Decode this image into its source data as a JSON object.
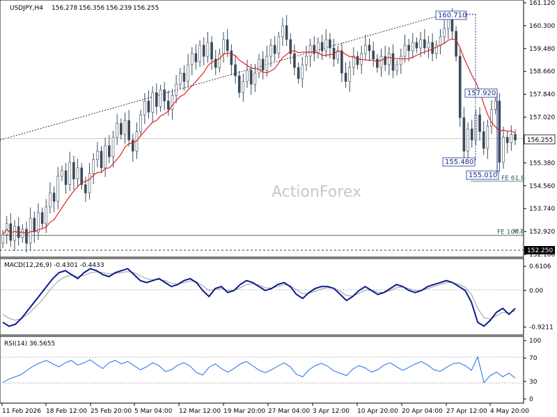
{
  "chart_data": [
    {
      "type": "candlestick",
      "title": "USDJPY,H4",
      "ohlc_header": {
        "open": "156.278",
        "high": "156.356",
        "low": "156.239",
        "close": "156.255"
      },
      "y_ticks": [
        "161.120",
        "160.300",
        "159.480",
        "158.660",
        "157.840",
        "157.020",
        "156.200",
        "155.380",
        "154.560",
        "153.740",
        "152.920",
        "152.100"
      ],
      "ylim": [
        152.1,
        161.12
      ],
      "current_price": "156.255",
      "current_price_value": 156.255,
      "low_marker_label": "152.250",
      "low_marker_value": 152.25,
      "moving_average_color": "#e0211f",
      "candle_color": "#3a4a5a",
      "grid": false,
      "annotations": {
        "peak": {
          "label": "160.710",
          "value": 160.71
        },
        "rebound_high": {
          "label": "157.920",
          "value": 157.92
        },
        "first_low": {
          "label": "155.480",
          "value": 155.48
        },
        "second_low": {
          "label": "155.010",
          "value": 155.01
        },
        "fe_618": {
          "label": "FE 61.8",
          "value": 154.72
        },
        "fe_100": {
          "label": "FE 100.0",
          "value": 152.78
        },
        "fe_100_fragment": "38.2"
      },
      "closes": [
        152.8,
        153.2,
        152.6,
        153.1,
        152.7,
        153.0,
        152.5,
        153.4,
        152.9,
        153.6,
        153.2,
        153.8,
        154.3,
        154.0,
        154.9,
        155.1,
        154.6,
        155.4,
        154.8,
        155.2,
        154.6,
        154.3,
        155.0,
        155.5,
        155.8,
        155.2,
        156.0,
        155.6,
        156.3,
        156.8,
        156.4,
        156.9,
        156.2,
        155.8,
        156.5,
        157.1,
        157.6,
        157.2,
        157.9,
        157.4,
        158.0,
        157.6,
        157.3,
        157.8,
        158.2,
        158.6,
        158.3,
        158.9,
        159.3,
        159.0,
        159.6,
        159.2,
        159.7,
        159.1,
        158.8,
        159.3,
        159.8,
        159.4,
        158.9,
        158.5,
        157.9,
        158.3,
        158.7,
        158.2,
        158.6,
        159.1,
        158.7,
        159.2,
        159.6,
        159.3,
        159.9,
        160.3,
        159.8,
        159.3,
        158.8,
        158.4,
        158.9,
        159.2,
        159.6,
        159.3,
        159.7,
        159.4,
        159.8,
        159.5,
        159.1,
        159.4,
        158.6,
        158.3,
        158.8,
        159.2,
        158.9,
        159.3,
        159.6,
        159.4,
        159.1,
        158.8,
        159.2,
        158.9,
        159.3,
        158.7,
        158.9,
        159.2,
        159.6,
        159.4,
        159.7,
        159.5,
        159.8,
        159.5,
        159.7,
        159.3,
        159.6,
        159.9,
        160.2,
        160.6,
        160.1,
        159.2,
        157.0,
        155.8,
        156.6,
        156.2,
        157.1,
        156.5,
        155.9,
        156.7,
        157.3,
        157.6,
        155.4,
        156.3,
        156.1,
        156.4,
        156.2
      ]
    },
    {
      "type": "line",
      "title": "MACD(12,26,9) -0.4301 -0.4433",
      "y_ticks": [
        "0.6106",
        "0.00",
        "-0.9211"
      ],
      "ylim": [
        -1.05,
        0.7
      ],
      "main_color": "#0a1a8c",
      "signal_color": "#9a9a9a",
      "macd": [
        -0.8,
        -0.9,
        -0.85,
        -0.7,
        -0.5,
        -0.3,
        -0.1,
        0.1,
        0.3,
        0.45,
        0.5,
        0.4,
        0.3,
        0.45,
        0.55,
        0.5,
        0.4,
        0.35,
        0.45,
        0.5,
        0.55,
        0.4,
        0.25,
        0.2,
        0.25,
        0.3,
        0.2,
        0.1,
        0.15,
        0.25,
        0.3,
        0.2,
        0.0,
        -0.15,
        0.05,
        0.1,
        -0.05,
        0.0,
        0.15,
        0.25,
        0.2,
        0.1,
        0.0,
        0.05,
        0.15,
        0.2,
        0.1,
        -0.1,
        -0.2,
        -0.05,
        0.05,
        0.1,
        0.1,
        0.05,
        -0.1,
        -0.25,
        -0.15,
        0.0,
        0.1,
        0.0,
        -0.1,
        -0.05,
        0.05,
        0.15,
        0.1,
        0.0,
        -0.05,
        0.0,
        0.1,
        0.15,
        0.2,
        0.25,
        0.2,
        0.1,
        0.0,
        -0.3,
        -0.8,
        -0.9,
        -0.75,
        -0.55,
        -0.45,
        -0.6,
        -0.45
      ],
      "signal": [
        -0.6,
        -0.7,
        -0.75,
        -0.7,
        -0.6,
        -0.45,
        -0.3,
        -0.1,
        0.1,
        0.25,
        0.35,
        0.38,
        0.35,
        0.38,
        0.45,
        0.47,
        0.45,
        0.42,
        0.43,
        0.45,
        0.48,
        0.45,
        0.37,
        0.3,
        0.27,
        0.28,
        0.25,
        0.18,
        0.16,
        0.2,
        0.24,
        0.22,
        0.12,
        0.0,
        0.02,
        0.05,
        0.0,
        0.0,
        0.07,
        0.15,
        0.17,
        0.14,
        0.07,
        0.06,
        0.1,
        0.15,
        0.12,
        0.02,
        -0.08,
        -0.07,
        -0.02,
        0.04,
        0.07,
        0.06,
        -0.02,
        -0.13,
        -0.14,
        -0.07,
        0.01,
        0.01,
        -0.04,
        -0.05,
        0.0,
        0.07,
        0.09,
        0.05,
        0.0,
        0.0,
        0.05,
        0.1,
        0.15,
        0.2,
        0.2,
        0.15,
        0.08,
        -0.1,
        -0.45,
        -0.68,
        -0.72,
        -0.64,
        -0.55,
        -0.57,
        -0.51
      ]
    },
    {
      "type": "line",
      "title": "RSI(14) 36.5655",
      "y_ticks": [
        "100",
        "70",
        "30",
        "0"
      ],
      "ylim": [
        0,
        100
      ],
      "line_color": "#1e6fe6",
      "level_lines": [
        70,
        30
      ],
      "values": [
        28,
        34,
        38,
        42,
        50,
        57,
        62,
        66,
        60,
        55,
        62,
        66,
        58,
        62,
        67,
        59,
        52,
        62,
        66,
        60,
        64,
        57,
        50,
        55,
        62,
        57,
        47,
        50,
        58,
        62,
        56,
        45,
        41,
        54,
        60,
        52,
        46,
        52,
        60,
        64,
        57,
        49,
        45,
        50,
        56,
        62,
        55,
        42,
        38,
        50,
        57,
        61,
        56,
        48,
        44,
        40,
        51,
        57,
        53,
        46,
        50,
        58,
        62,
        55,
        49,
        54,
        60,
        64,
        58,
        50,
        47,
        54,
        60,
        62,
        57,
        49,
        72,
        28,
        40,
        46,
        38,
        44,
        36
      ]
    }
  ],
  "x_ticks": [
    "11 Feb 2026",
    "18 Feb 12:00",
    "25 Feb 20:00",
    "5 Mar 04:00",
    "12 Mar 12:00",
    "19 Mar 20:00",
    "27 Mar 04:00",
    "3 Apr 12:00",
    "10 Apr 20:00",
    "20 Apr 04:00",
    "27 Apr 12:00",
    "4 May 20:00"
  ],
  "watermark": "ActionForex"
}
